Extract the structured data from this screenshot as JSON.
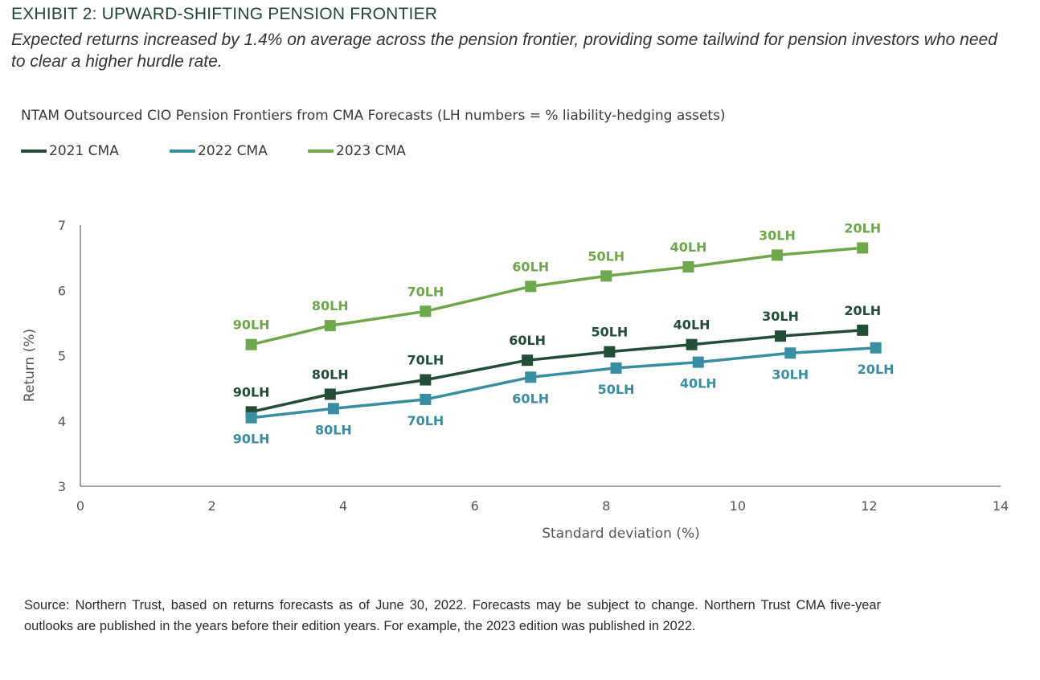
{
  "header": {
    "exhibit_title": "EXHIBIT 2: UPWARD-SHIFTING PENSION FRONTIER",
    "subtitle": "Expected returns increased by 1.4% on average across the pension frontier, providing some tailwind for pension investors who need to clear a higher hurdle rate."
  },
  "chart_data": {
    "type": "line",
    "title": "NTAM Outsourced CIO Pension Frontiers from CMA Forecasts (LH numbers = % liability-hedging assets)",
    "xlabel": "Standard deviation (%)",
    "ylabel": "Return (%)",
    "xlim": [
      0,
      14
    ],
    "ylim": [
      3,
      7
    ],
    "xticks": [
      0,
      2,
      4,
      6,
      8,
      10,
      12,
      14
    ],
    "yticks": [
      3,
      4,
      5,
      6,
      7
    ],
    "grid": false,
    "legend_position": "top-left",
    "series": [
      {
        "name": "2021 CMA",
        "color": "#224d36",
        "label_position": "above",
        "labels": [
          "90LH",
          "80LH",
          "70LH",
          "60LH",
          "50LH",
          "40LH",
          "30LH",
          "20LH"
        ],
        "x": [
          2.6,
          3.8,
          5.25,
          6.8,
          8.05,
          9.3,
          10.65,
          11.9
        ],
        "y": [
          4.14,
          4.41,
          4.63,
          4.93,
          5.06,
          5.17,
          5.3,
          5.39
        ]
      },
      {
        "name": "2022 CMA",
        "color": "#3a8ea3",
        "label_position": "below",
        "labels": [
          "90LH",
          "80LH",
          "70LH",
          "60LH",
          "50LH",
          "40LH",
          "30LH",
          "20LH"
        ],
        "x": [
          2.6,
          3.85,
          5.25,
          6.85,
          8.15,
          9.4,
          10.8,
          12.1
        ],
        "y": [
          4.05,
          4.19,
          4.33,
          4.67,
          4.81,
          4.9,
          5.04,
          5.12
        ]
      },
      {
        "name": "2023 CMA",
        "color": "#6fa84c",
        "label_position": "above",
        "labels": [
          "90LH",
          "80LH",
          "70LH",
          "60LH",
          "50LH",
          "40LH",
          "30LH",
          "20LH"
        ],
        "x": [
          2.6,
          3.8,
          5.25,
          6.85,
          8.0,
          9.25,
          10.6,
          11.9
        ],
        "y": [
          5.17,
          5.46,
          5.68,
          6.06,
          6.22,
          6.36,
          6.54,
          6.65
        ]
      }
    ]
  },
  "footer": {
    "source": "Source: Northern Trust, based on returns forecasts as of June 30, 2022. Forecasts may be subject to change. Northern Trust CMA five-year outlooks are published in the years before their edition years. For example, the 2023 edition was published in 2022."
  }
}
